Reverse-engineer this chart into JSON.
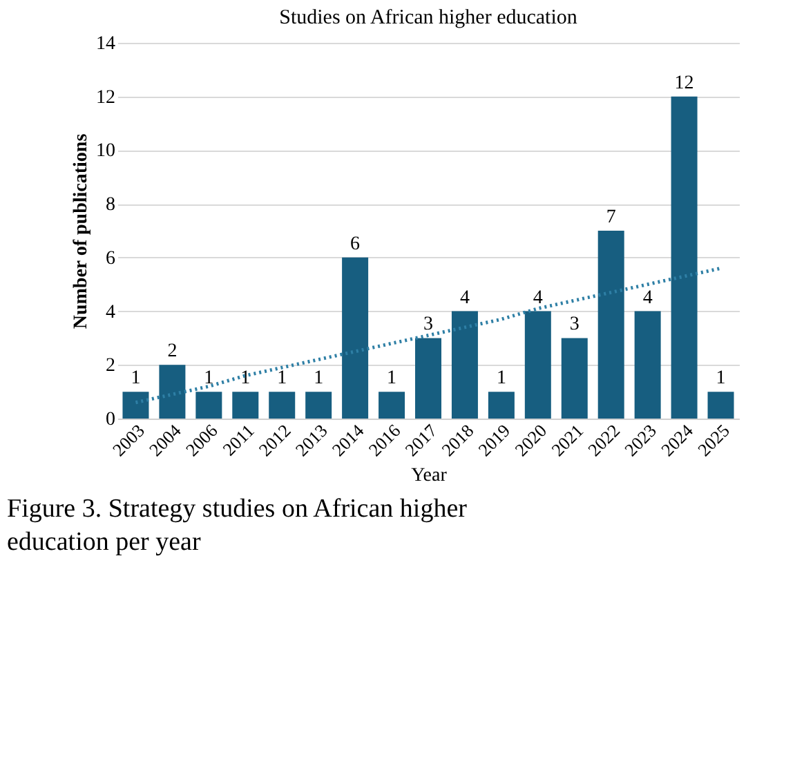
{
  "chart_data": {
    "type": "bar",
    "title": "Studies on African higher education",
    "xlabel": "Year",
    "ylabel": "Number of publications",
    "categories": [
      "2003",
      "2004",
      "2006",
      "2011",
      "2012",
      "2013",
      "2014",
      "2016",
      "2017",
      "2018",
      "2019",
      "2020",
      "2021",
      "2022",
      "2023",
      "2024",
      "2025"
    ],
    "series": [
      {
        "color": "#175e80",
        "values": [
          1,
          2,
          1,
          1,
          1,
          1,
          6,
          1,
          3,
          4,
          1,
          4,
          3,
          7,
          4,
          12,
          1
        ],
        "value_labels": [
          "1",
          "2",
          "1",
          "1",
          "1",
          "1",
          "6",
          "1",
          "3",
          "4",
          "1",
          "4",
          "3",
          "7",
          "4",
          "12",
          "1"
        ]
      },
      {
        "type": "line",
        "color": "#2e7fa5",
        "line_style": "dotted",
        "values": [
          0.6,
          0.9,
          1.2,
          1.6,
          1.9,
          2.2,
          2.5,
          2.8,
          3.1,
          3.4,
          3.7,
          4.1,
          4.4,
          4.7,
          5.0,
          5.3,
          5.6
        ]
      }
    ],
    "ylim": [
      0,
      14
    ],
    "yticks": [
      0,
      2,
      4,
      6,
      8,
      10,
      12,
      14
    ],
    "grid": "y",
    "annotations": [
      "Figure 3. Strategy studies on African higher education per year"
    ]
  }
}
